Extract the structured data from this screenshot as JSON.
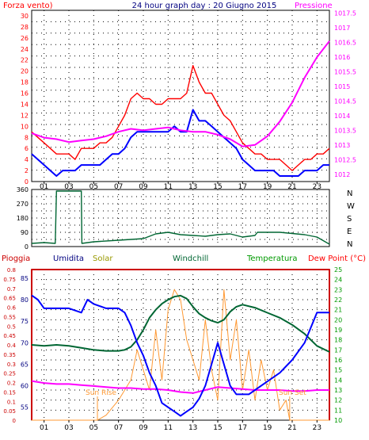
{
  "colors": {
    "red": "#ff0000",
    "magenta": "#ff00ff",
    "blue": "#0000ff",
    "navy": "#000080",
    "orange": "#ff9933",
    "olive": "#999900",
    "dark_green": "#006633",
    "green": "#009900",
    "dark_red": "#cc0000",
    "grid": "#000000"
  },
  "header": {
    "left_title": "Forza vento)",
    "center_title": "24 hour graph day : 20 Giugno 2015",
    "right_title": "Pressione"
  },
  "hour_labels": [
    "01",
    "03",
    "05",
    "07",
    "09",
    "11",
    "13",
    "15",
    "17",
    "19",
    "21",
    "23"
  ],
  "chart_data": [
    {
      "type": "line",
      "title": "24 hour graph day : 20 Giugno 2015",
      "x_unit": "hour",
      "xlim": [
        0,
        24
      ],
      "left_axis": {
        "label": "Forza vento)",
        "ylim": [
          0,
          31
        ],
        "ticks": [
          0,
          2,
          4,
          6,
          8,
          10,
          12,
          14,
          16,
          18,
          20,
          22,
          24,
          26,
          28,
          30
        ]
      },
      "right_axis": {
        "label": "Pressione",
        "ylim": [
          1011.75,
          1017.6
        ],
        "ticks": [
          "1012",
          "1012.5",
          "1013",
          "1013.5",
          "1014",
          "1014.5",
          "1015",
          "1015.5",
          "1016",
          "1016.5",
          "1017",
          "1017.5"
        ]
      },
      "series": [
        {
          "key": "gust",
          "axis": "left",
          "color_key": "red",
          "x": [
            0,
            0.5,
            1,
            1.5,
            2,
            2.5,
            3,
            3.5,
            4,
            4.5,
            5,
            5.5,
            6,
            6.5,
            7,
            7.5,
            8,
            8.5,
            9,
            9.5,
            10,
            10.5,
            11,
            11.5,
            12,
            12.5,
            13,
            13.5,
            14,
            14.5,
            15,
            15.5,
            16,
            16.5,
            17,
            17.5,
            18,
            18.5,
            19,
            19.5,
            20,
            20.5,
            21,
            21.5,
            22,
            22.5,
            23,
            23.5,
            24
          ],
          "y": [
            9,
            8,
            7,
            6,
            5,
            5,
            5,
            4,
            6,
            6,
            6,
            7,
            7,
            8,
            10,
            12,
            15,
            16,
            15,
            15,
            14,
            14,
            15,
            15,
            15,
            16,
            21,
            18,
            16,
            16,
            14,
            12,
            11,
            9,
            7,
            6,
            5,
            5,
            4,
            4,
            4,
            3,
            2,
            3,
            4,
            4,
            5,
            5,
            6
          ]
        },
        {
          "key": "wind",
          "axis": "left",
          "color_key": "blue",
          "x": [
            0,
            0.5,
            1,
            1.5,
            2,
            2.5,
            3,
            3.5,
            4,
            4.5,
            5,
            5.5,
            6,
            6.5,
            7,
            7.5,
            8,
            8.5,
            9,
            9.5,
            10,
            10.5,
            11,
            11.5,
            12,
            12.5,
            13,
            13.5,
            14,
            14.5,
            15,
            15.5,
            16,
            16.5,
            17,
            17.5,
            18,
            18.5,
            19,
            19.5,
            20,
            20.5,
            21,
            21.5,
            22,
            22.5,
            23,
            23.5,
            24
          ],
          "y": [
            5,
            4,
            3,
            2,
            1,
            2,
            2,
            2,
            3,
            3,
            3,
            3,
            4,
            5,
            5,
            6,
            8,
            9,
            9,
            9,
            9,
            9,
            9,
            10,
            9,
            9,
            13,
            11,
            11,
            10,
            9,
            8,
            7,
            6,
            4,
            3,
            2,
            2,
            2,
            2,
            1,
            1,
            1,
            1,
            2,
            2,
            2,
            3,
            3
          ]
        },
        {
          "key": "pressure",
          "axis": "right",
          "color_key": "magenta",
          "x": [
            0,
            1,
            2,
            3,
            4,
            5,
            6,
            7,
            8,
            9,
            10,
            11,
            12,
            13,
            14,
            15,
            16,
            17,
            18,
            19,
            20,
            21,
            22,
            23,
            24
          ],
          "y": [
            1013.4,
            1013.25,
            1013.2,
            1013.1,
            1013.15,
            1013.2,
            1013.3,
            1013.45,
            1013.55,
            1013.5,
            1013.55,
            1013.6,
            1013.5,
            1013.45,
            1013.45,
            1013.35,
            1013.2,
            1012.95,
            1013.0,
            1013.3,
            1013.8,
            1014.45,
            1015.3,
            1016.0,
            1016.55
          ]
        }
      ]
    },
    {
      "type": "line",
      "x_unit": "hour",
      "xlim": [
        0,
        24
      ],
      "left_axis": {
        "ylim": [
          0,
          360
        ],
        "ticks": [
          0,
          45,
          90,
          135,
          180,
          225,
          270,
          315,
          360
        ]
      },
      "right_axis_labels": [
        "N",
        "W",
        "S",
        "E",
        "N"
      ],
      "series": [
        {
          "key": "direction",
          "axis": "left",
          "color_key": "dark_green",
          "x": [
            0,
            1,
            1.9,
            2.0,
            4.0,
            4.05,
            5,
            7,
            9,
            10,
            11,
            12,
            13,
            14,
            15,
            16,
            17,
            18,
            18.2,
            20,
            22,
            23,
            24
          ],
          "y": [
            20,
            25,
            20,
            350,
            350,
            20,
            30,
            40,
            50,
            80,
            90,
            75,
            70,
            65,
            75,
            80,
            60,
            70,
            90,
            90,
            75,
            60,
            15
          ]
        }
      ]
    },
    {
      "type": "line",
      "x_unit": "hour",
      "xlim": [
        0,
        24
      ],
      "axis_titles": [
        "Pioggia",
        "Umidita",
        "Solar",
        "Windchill",
        "Temperatura",
        "Dew Point (°C)"
      ],
      "rain_axis": {
        "ylim": [
          0,
          0.8
        ],
        "ticks": [
          "0",
          "0.05",
          "0.1",
          "0.15",
          "0.2",
          "0.25",
          "0.3",
          "0.35",
          "0.4",
          "0.45",
          "0.5",
          "0.55",
          "0.6",
          "0.65",
          "0.7",
          "0.75",
          "0.8"
        ]
      },
      "humidity_axis": {
        "ylim": [
          52,
          87
        ],
        "ticks": [
          55,
          60,
          65,
          70,
          75,
          80,
          85
        ]
      },
      "temp_axis": {
        "ylim": [
          10,
          25
        ],
        "ticks": [
          10,
          11,
          12,
          13,
          14,
          15,
          16,
          17,
          18,
          19,
          20,
          21,
          22,
          23,
          24,
          25
        ]
      },
      "annotations": [
        "Sun Rise",
        "Sun Set"
      ],
      "sunrise_hour": 5.3,
      "sunset_hour": 20.8,
      "series": [
        {
          "key": "humidity",
          "axis": "humidity",
          "color_key": "blue",
          "x": [
            0,
            0.5,
            1,
            2,
            3,
            4,
            4.5,
            5,
            6,
            7,
            7.5,
            8,
            8.5,
            9,
            9.5,
            10,
            10.5,
            11,
            11.5,
            12,
            12.5,
            13,
            13.5,
            14,
            14.5,
            15,
            15.5,
            16,
            16.5,
            17,
            17.5,
            18,
            19,
            20,
            21,
            22,
            23,
            23.5,
            24
          ],
          "y": [
            81,
            80,
            78,
            78,
            78,
            77,
            80,
            79,
            78,
            78,
            77,
            74,
            70,
            67,
            63,
            60,
            56,
            55,
            54,
            53,
            54,
            55,
            57,
            60,
            65,
            70,
            65,
            60,
            58,
            58,
            58,
            59,
            61,
            63,
            66,
            70,
            77,
            77,
            77
          ]
        },
        {
          "key": "temperature",
          "axis": "temp",
          "color_key": "dark_green",
          "x": [
            0,
            1,
            2,
            3,
            4,
            5,
            6,
            7,
            7.5,
            8,
            8.5,
            9,
            9.5,
            10,
            10.5,
            11,
            11.5,
            12,
            12.5,
            13,
            13.5,
            14,
            14.5,
            15,
            15.5,
            16,
            16.5,
            17,
            18,
            19,
            20,
            21,
            22,
            23,
            24
          ],
          "y": [
            17.5,
            17.4,
            17.5,
            17.4,
            17.2,
            17.0,
            16.9,
            16.9,
            17.0,
            17.3,
            18.0,
            19.0,
            20.2,
            21.0,
            21.6,
            22.0,
            22.3,
            22.4,
            22.1,
            21.3,
            20.6,
            20.2,
            19.9,
            19.7,
            20.0,
            20.8,
            21.3,
            21.5,
            21.2,
            20.7,
            20.2,
            19.5,
            18.6,
            17.4,
            16.8
          ]
        },
        {
          "key": "dewpoint",
          "axis": "temp",
          "color_key": "magenta",
          "x": [
            0,
            1,
            2,
            3,
            4,
            5,
            6,
            7,
            8,
            9,
            10,
            11,
            12,
            13,
            14,
            15,
            16,
            17,
            18,
            19,
            20,
            21,
            22,
            23,
            24
          ],
          "y": [
            13.9,
            13.7,
            13.6,
            13.6,
            13.5,
            13.4,
            13.3,
            13.2,
            13.2,
            13.1,
            13.1,
            13.0,
            12.8,
            12.7,
            13.0,
            13.3,
            13.2,
            13.1,
            13.0,
            13.0,
            13.0,
            12.9,
            12.9,
            13.0,
            13.0
          ]
        },
        {
          "key": "solar",
          "axis": "temp",
          "color_key": "orange",
          "x": [
            0,
            5.3,
            6,
            7,
            8,
            8.5,
            9,
            9.5,
            10,
            10.5,
            11,
            11.5,
            12,
            12.5,
            13,
            13.5,
            14,
            14.5,
            15,
            15.5,
            16,
            16.5,
            17,
            17.5,
            18,
            18.5,
            19,
            19.5,
            20,
            20.5,
            20.8,
            24
          ],
          "y": [
            10,
            10,
            10.5,
            12,
            14,
            17,
            15,
            13,
            19,
            14,
            21,
            23,
            22,
            18,
            16,
            14,
            20,
            15,
            12,
            23,
            16,
            20,
            13,
            17,
            12,
            16,
            13,
            15,
            11,
            12,
            10,
            10
          ]
        },
        {
          "key": "rain",
          "axis": "rain",
          "color_key": "dark_red",
          "x": [
            0,
            0,
            15,
            15,
            24,
            24
          ],
          "y": [
            0,
            0.8,
            0.8,
            0.8,
            0.8,
            0
          ]
        }
      ]
    }
  ]
}
